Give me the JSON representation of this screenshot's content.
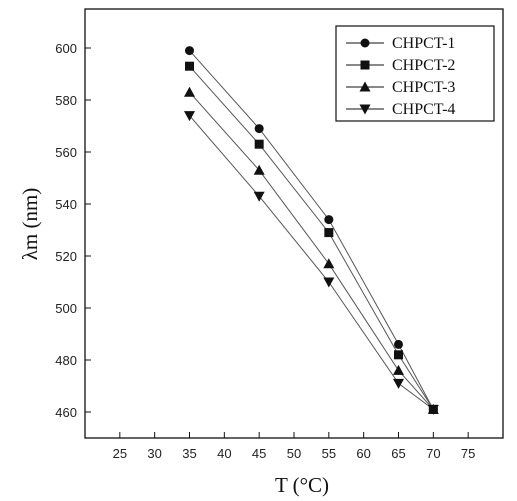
{
  "chart_data": {
    "type": "line",
    "xlabel": "T (°C)",
    "ylabel": "λm (nm)",
    "xlim": [
      20,
      80
    ],
    "ylim": [
      450,
      615
    ],
    "xticks": [
      25,
      30,
      35,
      40,
      45,
      50,
      55,
      60,
      65,
      70,
      75
    ],
    "yticks": [
      460,
      480,
      500,
      520,
      540,
      560,
      580,
      600
    ],
    "grid": false,
    "legend_position": "top-right",
    "series": [
      {
        "name": "CHPCT-1",
        "marker": "circle",
        "x": [
          35,
          45,
          55,
          65,
          70
        ],
        "y": [
          599,
          569,
          534,
          486,
          461
        ]
      },
      {
        "name": "CHPCT-2",
        "marker": "square",
        "x": [
          35,
          45,
          55,
          65,
          70
        ],
        "y": [
          593,
          563,
          529,
          482,
          461
        ]
      },
      {
        "name": "CHPCT-3",
        "marker": "triangle-up",
        "x": [
          35,
          45,
          55,
          65,
          70
        ],
        "y": [
          583,
          553,
          517,
          476,
          461
        ]
      },
      {
        "name": "CHPCT-4",
        "marker": "triangle-down",
        "x": [
          35,
          45,
          55,
          65,
          70
        ],
        "y": [
          574,
          543,
          510,
          471,
          461
        ]
      }
    ]
  },
  "colors": {
    "ink": "#111111",
    "line": "#555555"
  }
}
